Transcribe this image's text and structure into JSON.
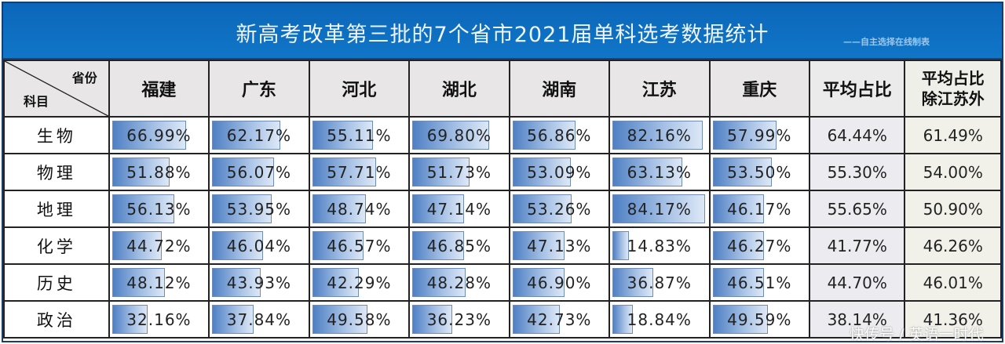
{
  "header": {
    "title": "新高考改革第三批的7个省市2021届单科选考数据统计",
    "subtitle": "——自主选择在线制表"
  },
  "table": {
    "corner_top": "省份",
    "corner_bottom": "科目",
    "columns": [
      "福建",
      "广东",
      "河北",
      "湖北",
      "湖南",
      "江苏",
      "重庆",
      "平均占比",
      "平均占比除江苏外"
    ],
    "avg_excl_line1": "平均占比",
    "avg_excl_line2": "除江苏外",
    "rows": [
      {
        "subject": "生物",
        "values": [
          "66.99%",
          "62.17%",
          "55.11%",
          "69.80%",
          "56.86%",
          "82.16%",
          "57.99%"
        ],
        "avg": "64.44%",
        "avg_excl": "61.49%"
      },
      {
        "subject": "物理",
        "values": [
          "51.88%",
          "56.07%",
          "57.71%",
          "51.73%",
          "53.09%",
          "63.13%",
          "53.50%"
        ],
        "avg": "55.30%",
        "avg_excl": "54.00%"
      },
      {
        "subject": "地理",
        "values": [
          "56.13%",
          "53.95%",
          "48.74%",
          "47.14%",
          "53.26%",
          "84.17%",
          "46.17%"
        ],
        "avg": "55.65%",
        "avg_excl": "50.90%"
      },
      {
        "subject": "化学",
        "values": [
          "44.72%",
          "46.04%",
          "46.57%",
          "46.85%",
          "47.13%",
          "14.83%",
          "46.27%"
        ],
        "avg": "41.77%",
        "avg_excl": "46.26%"
      },
      {
        "subject": "历史",
        "values": [
          "48.12%",
          "43.93%",
          "42.29%",
          "48.28%",
          "46.90%",
          "36.87%",
          "46.51%"
        ],
        "avg": "44.70%",
        "avg_excl": "46.01%"
      },
      {
        "subject": "政治",
        "values": [
          "32.16%",
          "37.84%",
          "49.58%",
          "36.23%",
          "42.73%",
          "18.84%",
          "49.59%"
        ],
        "avg": "38.14%",
        "avg_excl": "41.36%"
      }
    ]
  },
  "watermark": "快传号 / 英语一时代",
  "colors": {
    "title_bg": "#1076c8",
    "bar": "#4f80c4",
    "header_bg": "#e8e6e6"
  }
}
